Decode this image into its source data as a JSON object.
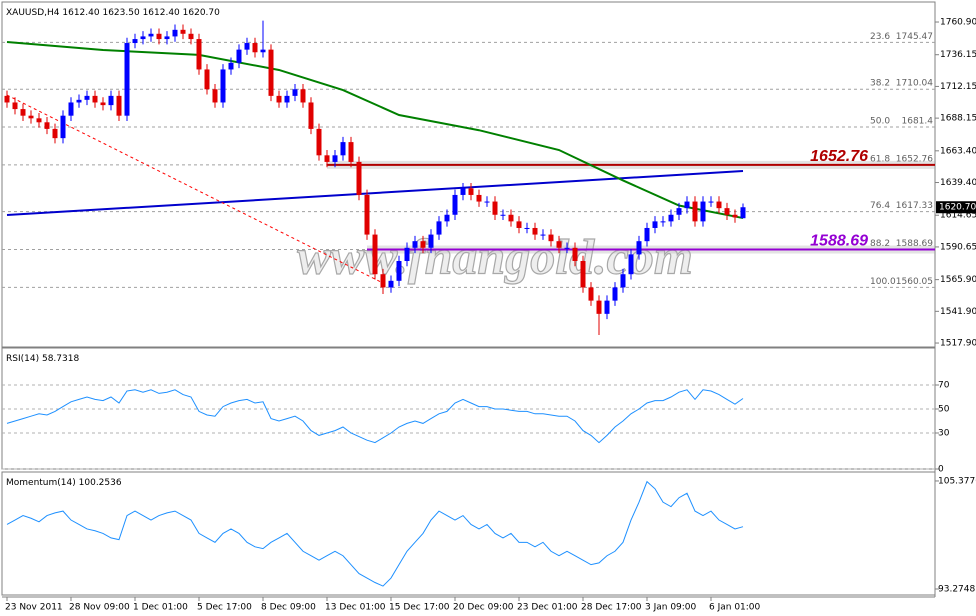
{
  "chart_data": [
    {
      "type": "candlestick",
      "title": "XAUUSD,H4",
      "header_values": [
        {
          "value": 1612.4,
          "label": "1612.40"
        },
        {
          "value": 1623.5,
          "label": "1623.50"
        },
        {
          "value": 1612.4,
          "label": "1612.40"
        },
        {
          "value": 1620.7,
          "label": "1620.70"
        }
      ],
      "categories": [
        "23 Nov 2011",
        null,
        null,
        null,
        null,
        null,
        null,
        null,
        "28 Nov 09:00",
        null,
        null,
        null,
        null,
        null,
        null,
        null,
        "1 Dec 01:00",
        null,
        null,
        null,
        null,
        null,
        null,
        null,
        "5 Dec 17:00",
        null,
        null,
        null,
        null,
        null,
        null,
        null,
        "8 Dec 09:00",
        null,
        null,
        null,
        null,
        null,
        null,
        null,
        "13 Dec 01:00",
        null,
        null,
        null,
        null,
        null,
        null,
        null,
        "15 Dec 17:00",
        null,
        null,
        null,
        null,
        null,
        null,
        null,
        "20 Dec 09:00",
        null,
        null,
        null,
        null,
        null,
        null,
        null,
        "23 Dec 01:00",
        null,
        null,
        null,
        null,
        null,
        null,
        null,
        "28 Dec 17:00",
        null,
        null,
        null,
        null,
        null,
        null,
        null,
        "3 Jan 09:00",
        null,
        null,
        null,
        null,
        null,
        null,
        null,
        "6 Jan 01:00",
        null,
        null,
        null,
        null
      ],
      "open": [
        1705,
        1700,
        1695,
        1690,
        1688,
        1685,
        1680,
        1673,
        1690,
        1700,
        1702,
        1705,
        1700,
        1698,
        1705,
        1690,
        1745,
        1748,
        1750,
        1752,
        1748,
        1750,
        1755,
        1752,
        1748,
        1725,
        1710,
        1700,
        1725,
        1730,
        1740,
        1745,
        1738,
        1740,
        1705,
        1700,
        1705,
        1710,
        1700,
        1680,
        1660,
        1655,
        1660,
        1670,
        1655,
        1630,
        1600,
        1570,
        1560,
        1565,
        1580,
        1590,
        1595,
        1590,
        1600,
        1610,
        1615,
        1630,
        1635,
        1630,
        1625,
        1625,
        1615,
        1615,
        1610,
        1605,
        1605,
        1600,
        1600,
        1595,
        1590,
        1590,
        1580,
        1560,
        1550,
        1540,
        1550,
        1560,
        1570,
        1585,
        1595,
        1605,
        1610,
        1610,
        1615,
        1620,
        1625,
        1610,
        1625,
        1625,
        1620,
        1615,
        1612.4
      ],
      "high": [
        1709,
        1704,
        1699,
        1694,
        1692,
        1689,
        1684,
        1694,
        1704,
        1706,
        1709,
        1709,
        1704,
        1709,
        1709,
        1749,
        1752,
        1754,
        1756,
        1756,
        1754,
        1759,
        1759,
        1756,
        1752,
        1729,
        1714,
        1729,
        1734,
        1744,
        1749,
        1749,
        1762,
        1744,
        1709,
        1709,
        1714,
        1714,
        1704,
        1684,
        1664,
        1664,
        1674,
        1674,
        1659,
        1634,
        1604,
        1574,
        1569,
        1584,
        1594,
        1599,
        1599,
        1604,
        1614,
        1619,
        1634,
        1639,
        1639,
        1634,
        1629,
        1629,
        1619,
        1619,
        1614,
        1609,
        1609,
        1604,
        1604,
        1599,
        1594,
        1594,
        1584,
        1564,
        1554,
        1554,
        1564,
        1574,
        1589,
        1599,
        1609,
        1614,
        1614,
        1619,
        1624,
        1629,
        1629,
        1629,
        1629,
        1629,
        1624,
        1619,
        1623.5
      ],
      "low": [
        1696,
        1691,
        1686,
        1684,
        1681,
        1676,
        1669,
        1669,
        1686,
        1696,
        1698,
        1696,
        1694,
        1694,
        1686,
        1686,
        1741,
        1744,
        1746,
        1744,
        1744,
        1746,
        1748,
        1744,
        1721,
        1706,
        1696,
        1696,
        1721,
        1726,
        1736,
        1734,
        1734,
        1701,
        1696,
        1696,
        1701,
        1696,
        1676,
        1656,
        1651,
        1651,
        1656,
        1651,
        1626,
        1596,
        1566,
        1555,
        1556,
        1561,
        1576,
        1586,
        1586,
        1586,
        1596,
        1606,
        1611,
        1626,
        1626,
        1621,
        1621,
        1611,
        1611,
        1606,
        1601,
        1601,
        1596,
        1596,
        1591,
        1586,
        1586,
        1576,
        1556,
        1546,
        1524,
        1536,
        1546,
        1556,
        1566,
        1581,
        1591,
        1601,
        1606,
        1606,
        1611,
        1616,
        1606,
        1606,
        1621,
        1616,
        1611,
        1609,
        1612.4
      ],
      "close": [
        1700,
        1695,
        1690,
        1688,
        1685,
        1680,
        1673,
        1690,
        1700,
        1702,
        1705,
        1700,
        1698,
        1705,
        1690,
        1745,
        1748,
        1750,
        1752,
        1748,
        1750,
        1755,
        1752,
        1748,
        1725,
        1710,
        1700,
        1725,
        1730,
        1740,
        1745,
        1738,
        1740,
        1705,
        1700,
        1705,
        1710,
        1700,
        1680,
        1660,
        1655,
        1660,
        1670,
        1655,
        1630,
        1600,
        1570,
        1560,
        1565,
        1580,
        1590,
        1595,
        1590,
        1600,
        1610,
        1615,
        1630,
        1635,
        1630,
        1625,
        1625,
        1615,
        1615,
        1610,
        1605,
        1605,
        1600,
        1600,
        1595,
        1590,
        1590,
        1580,
        1560,
        1550,
        1540,
        1550,
        1560,
        1570,
        1585,
        1595,
        1605,
        1610,
        1610,
        1615,
        1620,
        1625,
        1610,
        1625,
        1625,
        1620,
        1615,
        1613,
        1620.7
      ],
      "up_color": "#0000ff",
      "down_color": "#e00000",
      "ylim": [
        1514.9,
        1775.3
      ],
      "yticks": [
        {
          "value": 1760.9,
          "label": "1760.90"
        },
        1736.15,
        1712.15,
        1688.15,
        {
          "value": 1663.4,
          "label": "1663.40"
        },
        {
          "value": 1639.4,
          "label": "1639.40"
        },
        1614.65,
        1590.65,
        {
          "value": 1565.9,
          "label": "1565.90"
        },
        {
          "value": 1541.9,
          "label": "1541.90"
        },
        {
          "value": 1517.9,
          "label": "1517.90"
        }
      ],
      "levels": [
        {
          "label": "23.6",
          "value": 1745.47
        },
        {
          "label": "38.2",
          "value": 1710.04
        },
        {
          "label": "50.0",
          "value": 1681.4
        },
        {
          "label": "61.8",
          "value": 1652.76
        },
        {
          "label": "76.4",
          "value": 1617.33
        },
        {
          "label": "88.2",
          "value": 1588.69
        },
        {
          "label": "100.0",
          "value": 1560.05
        }
      ],
      "hlines": [
        {
          "value": 1652.76,
          "color": "#b00000",
          "start": 40
        },
        {
          "value": 1588.69,
          "color": "#9400d3",
          "start": 45
        }
      ],
      "trendlines": [
        {
          "color": "#0000cc",
          "x": [
            0,
            92
          ],
          "values": [
            1614.8,
            1648.1
          ],
          "dashed": false
        },
        {
          "color": "#ff0000",
          "x": [
            0,
            47.5
          ],
          "values": [
            1705.6,
            1561.8
          ],
          "dashed": true
        }
      ],
      "ma": {
        "color": "#008000",
        "x": [
          0,
          12,
          24,
          34,
          42,
          49,
          59,
          69,
          77,
          84,
          92
        ],
        "values": [
          1745.8,
          1739.7,
          1736,
          1724.6,
          1709.4,
          1690.5,
          1679,
          1664,
          1641,
          1622,
          1612.5
        ]
      },
      "last_price": {
        "value": 1620.7,
        "label": "1620.70"
      },
      "watermark": "www.fnangold.com"
    },
    {
      "type": "line",
      "title": "RSI(14)",
      "color": "#1e90ff",
      "values": [
        38,
        40,
        42,
        44,
        46,
        45,
        48,
        52,
        56,
        58,
        60,
        58,
        57,
        60,
        55,
        65,
        66,
        64,
        66,
        63,
        64,
        66,
        62,
        60,
        48,
        45,
        44,
        52,
        55,
        57,
        58,
        55,
        56,
        42,
        40,
        42,
        44,
        40,
        32,
        28,
        30,
        32,
        35,
        30,
        27,
        24,
        22,
        26,
        30,
        35,
        38,
        40,
        38,
        42,
        46,
        48,
        55,
        58,
        55,
        52,
        52,
        50,
        50,
        49,
        48,
        48,
        46,
        46,
        45,
        44,
        44,
        40,
        32,
        28,
        22,
        28,
        35,
        40,
        46,
        50,
        55,
        57,
        57,
        60,
        64,
        66,
        58,
        66,
        65,
        62,
        58,
        54,
        58.7318
      ],
      "ylim": [
        0,
        100
      ],
      "yticks": [
        0,
        30,
        50,
        70
      ],
      "grid": true
    },
    {
      "type": "line",
      "title": "Momentum(14)",
      "color": "#1e90ff",
      "values": [
        100.5,
        101.0,
        101.5,
        101.2,
        100.8,
        101.5,
        101.8,
        102.0,
        101.0,
        100.5,
        100.0,
        99.8,
        99.5,
        99.0,
        98.8,
        101.5,
        102.0,
        101.5,
        101.0,
        101.5,
        101.8,
        102.0,
        101.5,
        101.0,
        99.5,
        99.0,
        98.5,
        99.5,
        100.0,
        99.5,
        98.5,
        98.0,
        97.8,
        98.5,
        99.0,
        99.5,
        98.5,
        97.5,
        97.0,
        96.5,
        97.0,
        97.5,
        97.0,
        96.0,
        95.0,
        94.5,
        94.0,
        93.6,
        94.5,
        96.0,
        97.5,
        98.5,
        99.5,
        101.0,
        102.0,
        101.5,
        101.0,
        101.5,
        100.5,
        100.0,
        100.5,
        99.5,
        99.0,
        99.5,
        98.5,
        98.5,
        98.0,
        98.5,
        97.5,
        97.0,
        97.5,
        97.0,
        96.5,
        96.0,
        96.2,
        97.0,
        97.5,
        98.5,
        101.0,
        103.0,
        105.3,
        104.5,
        103.0,
        102.5,
        103.5,
        104.0,
        102.0,
        101.5,
        102.0,
        101.0,
        100.5,
        100.0,
        100.2536
      ],
      "ylim": [
        92.6,
        106.27
      ],
      "yticks": [
        93.2748,
        105.3776
      ],
      "grid": false
    }
  ]
}
